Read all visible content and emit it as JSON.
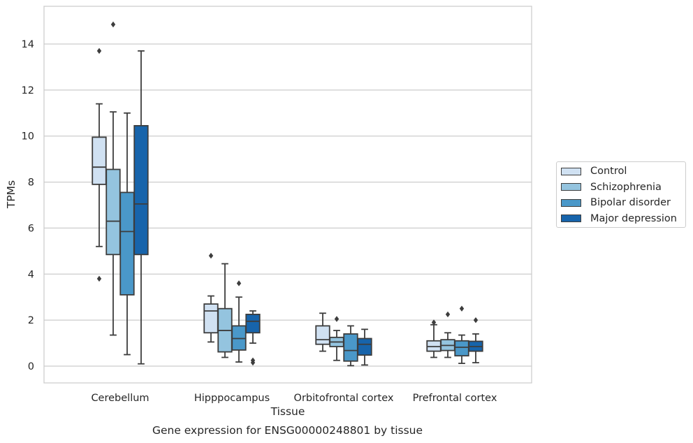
{
  "caption": "Gene expression for ENSG00000248801 by tissue",
  "chart_data": {
    "type": "box",
    "xlabel": "Tissue",
    "ylabel": "TPMs",
    "ylim": [
      -0.7,
      15.5
    ],
    "yticks": [
      0,
      2,
      4,
      6,
      8,
      10,
      12,
      14
    ],
    "grid": "horizontal",
    "legend_position": "right",
    "categories": [
      "Cerebellum",
      "Hipppocampus",
      "Orbitofrontal cortex",
      "Prefrontal cortex"
    ],
    "series": [
      {
        "name": "Control",
        "color": "#d0e1f2",
        "boxes": [
          {
            "whisker_low": 5.2,
            "q1": 7.9,
            "median": 8.65,
            "q3": 9.95,
            "whisker_high": 11.4,
            "outliers": [
              13.7,
              3.8
            ]
          },
          {
            "whisker_low": 1.05,
            "q1": 1.45,
            "median": 2.4,
            "q3": 2.7,
            "whisker_high": 3.05,
            "outliers": [
              4.8
            ]
          },
          {
            "whisker_low": 0.65,
            "q1": 0.95,
            "median": 1.15,
            "q3": 1.75,
            "whisker_high": 2.3,
            "outliers": []
          },
          {
            "whisker_low": 0.38,
            "q1": 0.65,
            "median": 0.85,
            "q3": 1.1,
            "whisker_high": 1.8,
            "outliers": [
              1.9
            ]
          }
        ]
      },
      {
        "name": "Schizophrenia",
        "color": "#94c4df",
        "boxes": [
          {
            "whisker_low": 1.35,
            "q1": 4.85,
            "median": 6.3,
            "q3": 8.55,
            "whisker_high": 11.05,
            "outliers": [
              14.85
            ]
          },
          {
            "whisker_low": 0.38,
            "q1": 0.62,
            "median": 1.55,
            "q3": 2.5,
            "whisker_high": 4.45,
            "outliers": []
          },
          {
            "whisker_low": 0.25,
            "q1": 0.85,
            "median": 1.05,
            "q3": 1.25,
            "whisker_high": 1.55,
            "outliers": [
              2.05
            ]
          },
          {
            "whisker_low": 0.38,
            "q1": 0.68,
            "median": 0.9,
            "q3": 1.15,
            "whisker_high": 1.45,
            "outliers": [
              2.25
            ]
          }
        ]
      },
      {
        "name": "Bipolar disorder",
        "color": "#4a98c9",
        "boxes": [
          {
            "whisker_low": 0.5,
            "q1": 3.1,
            "median": 5.85,
            "q3": 7.55,
            "whisker_high": 11.0,
            "outliers": []
          },
          {
            "whisker_low": 0.18,
            "q1": 0.7,
            "median": 1.2,
            "q3": 1.75,
            "whisker_high": 3.0,
            "outliers": [
              3.6
            ]
          },
          {
            "whisker_low": 0.02,
            "q1": 0.22,
            "median": 0.68,
            "q3": 1.4,
            "whisker_high": 1.75,
            "outliers": []
          },
          {
            "whisker_low": 0.12,
            "q1": 0.45,
            "median": 0.82,
            "q3": 1.1,
            "whisker_high": 1.35,
            "outliers": [
              2.5
            ]
          }
        ]
      },
      {
        "name": "Major depression",
        "color": "#1764ab",
        "boxes": [
          {
            "whisker_low": 0.1,
            "q1": 4.85,
            "median": 7.05,
            "q3": 10.45,
            "whisker_high": 13.7,
            "outliers": []
          },
          {
            "whisker_low": 1.0,
            "q1": 1.45,
            "median": 1.95,
            "q3": 2.25,
            "whisker_high": 2.4,
            "outliers": [
              0.25,
              0.15
            ]
          },
          {
            "whisker_low": 0.05,
            "q1": 0.48,
            "median": 0.95,
            "q3": 1.2,
            "whisker_high": 1.6,
            "outliers": []
          },
          {
            "whisker_low": 0.15,
            "q1": 0.65,
            "median": 0.85,
            "q3": 1.08,
            "whisker_high": 1.4,
            "outliers": [
              2.0
            ]
          }
        ]
      }
    ]
  }
}
